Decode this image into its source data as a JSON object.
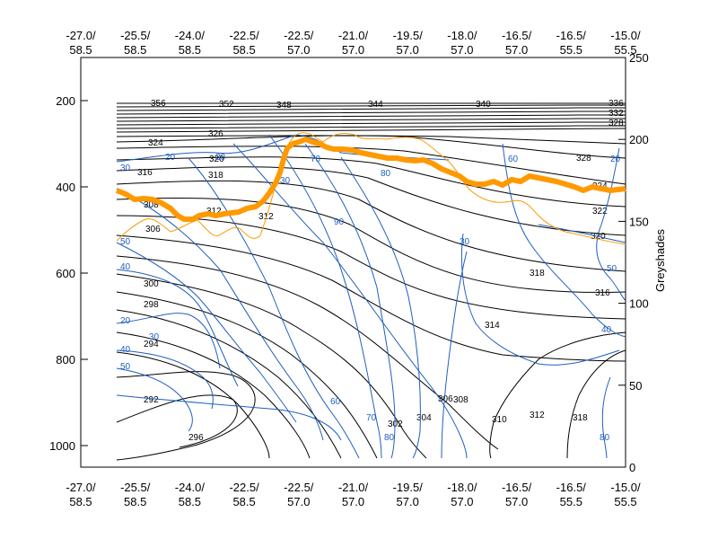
{
  "chart_data": {
    "type": "contour",
    "panel_type": "vertical cross-section",
    "grid": false,
    "x_tick_labels": [
      {
        "top": "-27.0/",
        "bottom": "58.5"
      },
      {
        "top": "-25.5/",
        "bottom": "58.5"
      },
      {
        "top": "-24.0/",
        "bottom": "58.5"
      },
      {
        "top": "-22.5/",
        "bottom": "58.5"
      },
      {
        "top": "-22.5/",
        "bottom": "57.0"
      },
      {
        "top": "-21.0/",
        "bottom": "57.0"
      },
      {
        "top": "-19.5/",
        "bottom": "57.0"
      },
      {
        "top": "-18.0/",
        "bottom": "57.0"
      },
      {
        "top": "-16.5/",
        "bottom": "57.0"
      },
      {
        "top": "-16.5/",
        "bottom": "55.5"
      },
      {
        "top": "-15.0/",
        "bottom": "55.5"
      }
    ],
    "y_left": {
      "label": "",
      "range": [
        1050,
        100
      ],
      "ticks": [
        200,
        400,
        600,
        800,
        1000
      ]
    },
    "y_right": {
      "label": "Greyshades",
      "range": [
        0,
        250
      ],
      "ticks": [
        0,
        50,
        100,
        150,
        200,
        250
      ]
    },
    "series": [
      {
        "kind": "contour",
        "color": "#000000",
        "levels": [
          292,
          294,
          296,
          298,
          300,
          302,
          304,
          306,
          308,
          310,
          312,
          314,
          316,
          318,
          320,
          322,
          324,
          326,
          328,
          330,
          332,
          334,
          336,
          338,
          340,
          344,
          348,
          352,
          356
        ],
        "labels": [
          "356",
          "352",
          "348",
          "344",
          "340",
          "336",
          "332",
          "328",
          "326",
          "324",
          "322",
          "320",
          "318",
          "316",
          "314",
          "312",
          "310",
          "308",
          "306",
          "304",
          "302",
          "300",
          "298",
          "296",
          "294",
          "292"
        ]
      },
      {
        "kind": "contour",
        "color": "#1f5fbf",
        "labels": [
          "20",
          "30",
          "40",
          "50",
          "60",
          "70",
          "80",
          "90"
        ]
      },
      {
        "kind": "line",
        "color": "#ff9900"
      }
    ]
  }
}
